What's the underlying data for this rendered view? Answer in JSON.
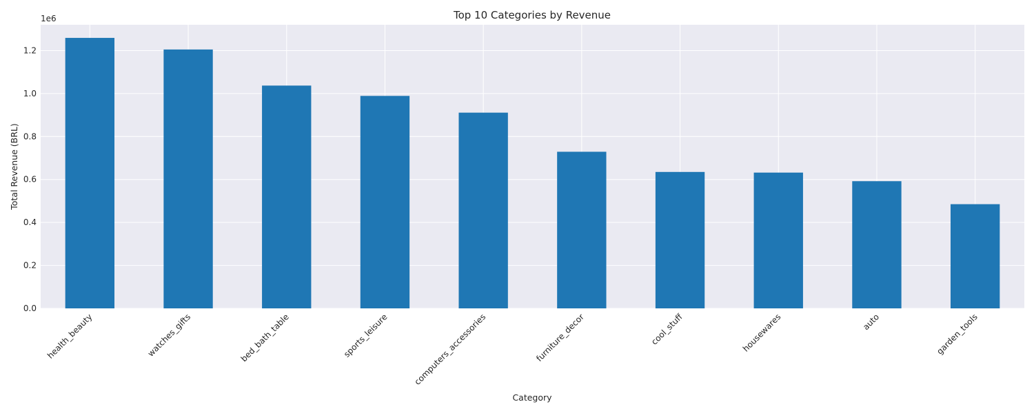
{
  "chart_data": {
    "type": "bar",
    "title": "Top 10 Categories by Revenue",
    "xlabel": "Category",
    "ylabel": "Total Revenue (BRL)",
    "y_offset_label": "1e6",
    "categories": [
      "health_beauty",
      "watches_gifts",
      "bed_bath_table",
      "sports_leisure",
      "computers_accessories",
      "furniture_decor",
      "cool_stuff",
      "housewares",
      "auto",
      "garden_tools"
    ],
    "values": [
      1259000,
      1205000,
      1037000,
      989000,
      911000,
      729000,
      635000,
      632000,
      592000,
      485000
    ],
    "ylim": [
      0,
      1320000
    ],
    "yticks": [
      0,
      200000,
      400000,
      600000,
      800000,
      1000000,
      1200000
    ],
    "ytick_labels": [
      "0.0",
      "0.2",
      "0.4",
      "0.6",
      "0.8",
      "1.0",
      "1.2"
    ],
    "grid": true,
    "bar_color": "#1f77b4",
    "background_color": "#eaeaf2",
    "grid_color": "#ffffff"
  }
}
